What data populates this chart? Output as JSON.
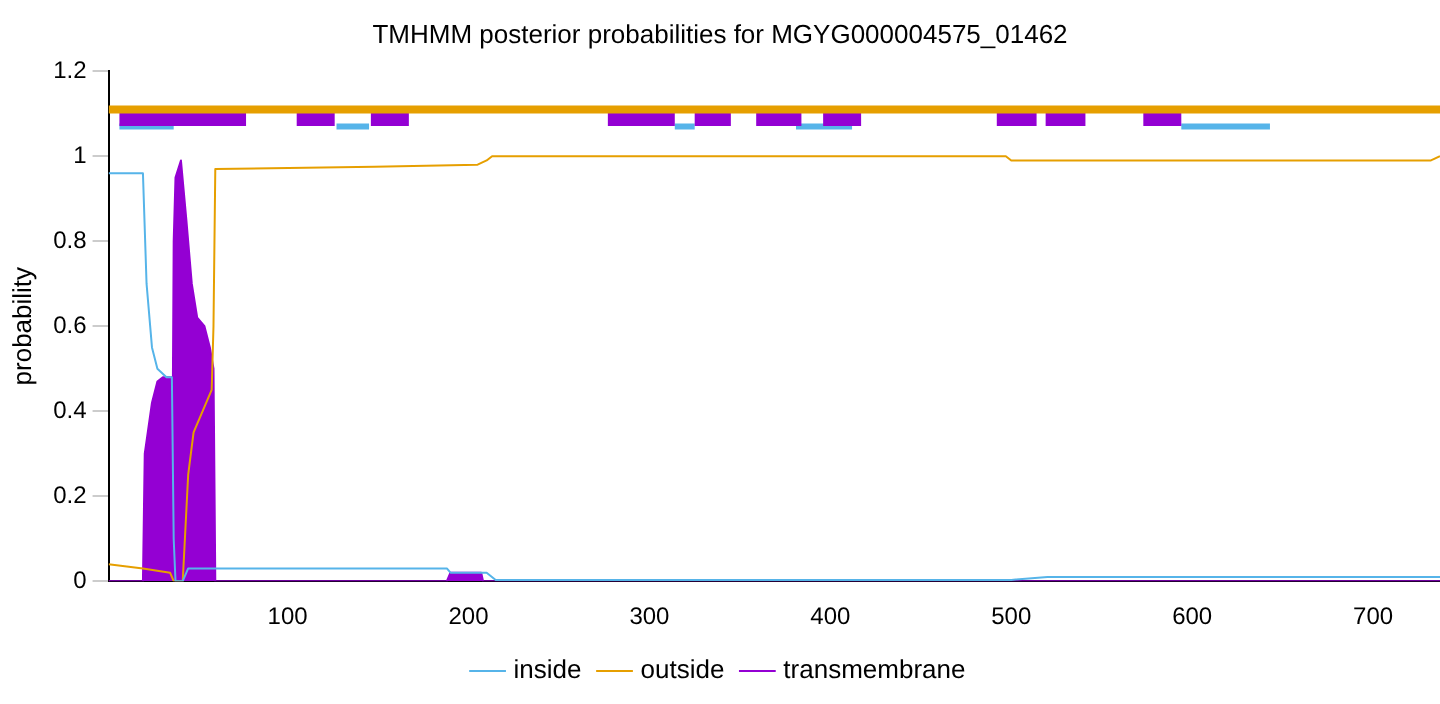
{
  "chart_data": {
    "type": "line",
    "title": "TMHMM posterior probabilities for MGYG000004575_01462",
    "ylabel": "probability",
    "xlim": [
      1,
      737
    ],
    "xticks": [
      100,
      200,
      300,
      400,
      500,
      600,
      700
    ],
    "ylim": [
      0,
      1.2
    ],
    "yticks": [
      0,
      0.2,
      0.4,
      0.6,
      0.8,
      1,
      1.2
    ],
    "grid": false,
    "legend": "bottom",
    "marker": "none",
    "series": [
      {
        "name": "transmembrane",
        "type": "area",
        "color": "#9400d3",
        "x": [
          1,
          20,
          21,
          25,
          28,
          31,
          35,
          36,
          37,
          38,
          41,
          44,
          47,
          50,
          54,
          57,
          59,
          60,
          188,
          190,
          200,
          207,
          208,
          737
        ],
        "values": [
          0,
          0,
          0.3,
          0.42,
          0.47,
          0.48,
          0.48,
          0.05,
          0.8,
          0.95,
          0.99,
          0.85,
          0.7,
          0.62,
          0.6,
          0.55,
          0.5,
          0,
          0,
          0.02,
          0.02,
          0.02,
          0,
          0
        ]
      },
      {
        "name": "inside",
        "type": "line",
        "color": "#56b4e9",
        "x": [
          1,
          20,
          22,
          25,
          28,
          33,
          36,
          37,
          38,
          42,
          45,
          188,
          190,
          210,
          215,
          500,
          520,
          737
        ],
        "values": [
          0.96,
          0.96,
          0.7,
          0.55,
          0.5,
          0.48,
          0.48,
          0.1,
          0,
          0,
          0.03,
          0.03,
          0.02,
          0.02,
          0.003,
          0.003,
          0.01,
          0.01
        ]
      },
      {
        "name": "outside",
        "type": "line",
        "color": "#e69f00",
        "x": [
          1,
          20,
          35,
          37,
          42,
          45,
          48,
          55,
          58,
          59,
          60,
          148,
          205,
          210,
          213,
          497,
          500,
          732,
          737
        ],
        "values": [
          0.04,
          0.03,
          0.02,
          0,
          0,
          0.25,
          0.35,
          0.42,
          0.45,
          0.6,
          0.97,
          0.975,
          0.98,
          0.99,
          1,
          1,
          0.99,
          0.99,
          1
        ]
      },
      {
        "type": "line",
        "color": "#e69f00",
        "x": [
          1,
          737
        ],
        "values": [
          1.11,
          1.11
        ]
      },
      {
        "type": "line",
        "color": "#9400d3",
        "x": [
          7,
          77,
          91,
          105,
          126,
          136,
          146,
          167,
          222,
          277,
          314,
          320,
          325,
          345,
          352,
          359,
          384,
          390,
          396,
          417,
          455,
          492,
          514,
          517,
          519,
          541,
          557,
          573,
          594
        ],
        "values": [
          1.09,
          1.09,
          null,
          1.09,
          1.09,
          null,
          1.09,
          1.09,
          null,
          1.09,
          1.09,
          null,
          1.09,
          1.09,
          null,
          1.09,
          1.09,
          null,
          1.09,
          1.09,
          null,
          1.09,
          1.09,
          null,
          1.09,
          1.09,
          null,
          1.09,
          1.09
        ]
      },
      {
        "type": "line",
        "color": "#56b4e9",
        "x": [
          7,
          37,
          82,
          127,
          145,
          230,
          314,
          325,
          353,
          381,
          412,
          503,
          594,
          643
        ],
        "values": [
          1.07,
          1.07,
          null,
          1.07,
          1.07,
          null,
          1.07,
          1.07,
          null,
          1.07,
          1.07,
          null,
          1.07,
          1.07
        ]
      }
    ]
  }
}
